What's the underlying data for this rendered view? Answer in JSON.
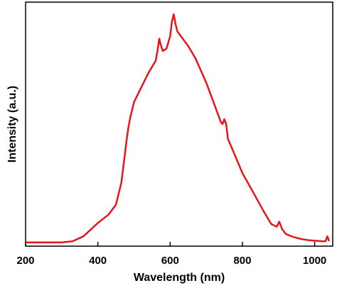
{
  "chart_data": {
    "type": "line",
    "title": "",
    "xlabel": "Wavelength (nm)",
    "ylabel": "Intensity (a.u.)",
    "xlim": [
      200,
      1050
    ],
    "ylim": [
      0,
      1.0
    ],
    "xticks": [
      200,
      400,
      600,
      800,
      1000
    ],
    "xtick_labels": [
      "200",
      "400",
      "600",
      "800",
      "1000"
    ],
    "grid": false,
    "legend": "none",
    "series": [
      {
        "color": "#e8141c",
        "x": [
          200,
          250,
          300,
          330,
          360,
          400,
          430,
          450,
          465,
          475,
          480,
          485,
          490,
          500,
          520,
          540,
          560,
          565,
          570,
          575,
          580,
          590,
          600,
          605,
          610,
          615,
          620,
          630,
          650,
          670,
          700,
          720,
          740,
          745,
          750,
          755,
          760,
          780,
          800,
          830,
          860,
          880,
          895,
          902,
          910,
          920,
          940,
          960,
          980,
          1000,
          1020,
          1030,
          1035,
          1040
        ],
        "y": [
          0.015,
          0.015,
          0.015,
          0.02,
          0.04,
          0.095,
          0.13,
          0.17,
          0.26,
          0.38,
          0.44,
          0.49,
          0.53,
          0.59,
          0.65,
          0.71,
          0.76,
          0.8,
          0.85,
          0.82,
          0.8,
          0.81,
          0.86,
          0.92,
          0.95,
          0.91,
          0.88,
          0.86,
          0.82,
          0.77,
          0.67,
          0.59,
          0.51,
          0.5,
          0.52,
          0.5,
          0.44,
          0.37,
          0.3,
          0.22,
          0.14,
          0.09,
          0.08,
          0.1,
          0.07,
          0.05,
          0.038,
          0.03,
          0.025,
          0.022,
          0.02,
          0.02,
          0.04,
          0.02
        ]
      }
    ]
  }
}
